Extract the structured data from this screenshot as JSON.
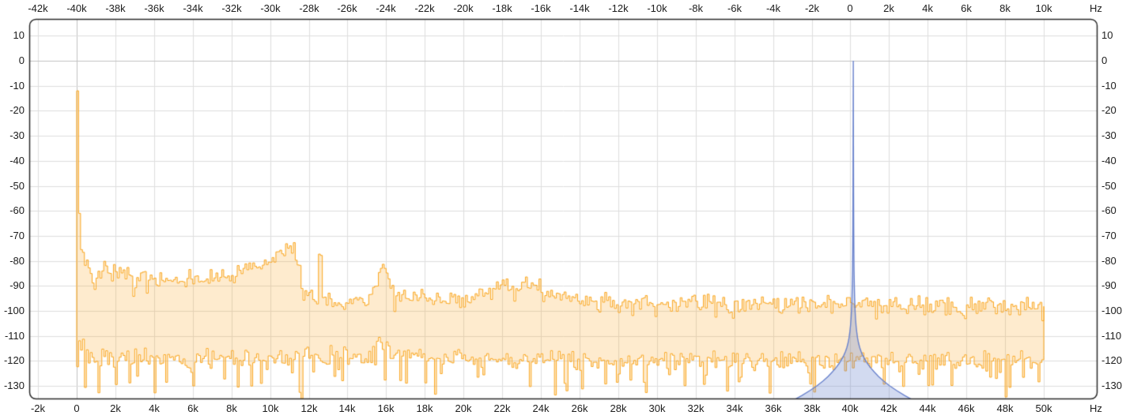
{
  "window": {
    "background": "#ffffff",
    "description": "FFT frequency spectrum plot with max/min hold traces and reference tone peak"
  },
  "chart_data": {
    "type": "line",
    "title": "",
    "grid": {
      "color": "#dedede",
      "zero_line_color": "#c2c2c2",
      "border_color": "#2a2a2a",
      "grid_on": true
    },
    "x_range_hz": [
      -2431,
      52757
    ],
    "y_range_db": [
      -135.2,
      16.6
    ],
    "x_axis_top": {
      "unit_label": "Hz",
      "offset_hz": 40000,
      "tick_values_hz": [
        -42000,
        -40000,
        -38000,
        -36000,
        -34000,
        -32000,
        -30000,
        -28000,
        -26000,
        -24000,
        -22000,
        -20000,
        -18000,
        -16000,
        -14000,
        -12000,
        -10000,
        -8000,
        -6000,
        -4000,
        -2000,
        0,
        2000,
        4000,
        6000,
        8000,
        10000
      ],
      "labels": [
        "-42k",
        "-40k",
        "-38k",
        "-36k",
        "-34k",
        "-32k",
        "-30k",
        "-28k",
        "-26k",
        "-24k",
        "-22k",
        "-20k",
        "-18k",
        "-16k",
        "-14k",
        "-12k",
        "-10k",
        "-8k",
        "-6k",
        "-4k",
        "-2k",
        "0",
        "2k",
        "4k",
        "6k",
        "8k",
        "10k"
      ]
    },
    "x_axis_bottom": {
      "unit_label": "Hz",
      "offset_hz": 0,
      "tick_values_hz": [
        -2000,
        0,
        2000,
        4000,
        6000,
        8000,
        10000,
        12000,
        14000,
        16000,
        18000,
        20000,
        22000,
        24000,
        26000,
        28000,
        30000,
        32000,
        34000,
        36000,
        38000,
        40000,
        42000,
        44000,
        46000,
        48000,
        50000
      ],
      "labels": [
        "-2k",
        "0",
        "2k",
        "4k",
        "6k",
        "8k",
        "10k",
        "12k",
        "14k",
        "16k",
        "18k",
        "20k",
        "22k",
        "24k",
        "26k",
        "28k",
        "30k",
        "32k",
        "34k",
        "36k",
        "38k",
        "40k",
        "42k",
        "44k",
        "46k",
        "48k",
        "50k"
      ]
    },
    "y_axis_left": {
      "tick_values_db": [
        10,
        0,
        -10,
        -20,
        -30,
        -40,
        -50,
        -60,
        -70,
        -80,
        -90,
        -100,
        -110,
        -120,
        -130
      ],
      "labels": [
        "10",
        "0",
        "-10",
        "-20",
        "-30",
        "-40",
        "-50",
        "-60",
        "-70",
        "-80",
        "-90",
        "-100",
        "-110",
        "-120",
        "-130"
      ]
    },
    "y_axis_right": {
      "tick_values_db": [
        10,
        0,
        -10,
        -20,
        -30,
        -40,
        -50,
        -60,
        -70,
        -80,
        -90,
        -100,
        -110,
        -120,
        -130
      ],
      "labels": [
        "10",
        "0",
        "-10",
        "-20",
        "-30",
        "-40",
        "-50",
        "-60",
        "-70",
        "-80",
        "-90",
        "-100",
        "-110",
        "-120",
        "-130"
      ]
    },
    "series": [
      {
        "name": "spectrum-max-trace",
        "style": "step",
        "color": "#faa61e",
        "fill_to": "spectrum-min-trace",
        "fill_color": "rgba(250,166,30,0.22)",
        "start_hz": 0,
        "end_hz": 50000,
        "bin_hz": 100,
        "noise_db": 4.5,
        "dip_chance": 0.07,
        "dip_db": 6,
        "seed": 20240517,
        "pin_first": true,
        "envelope_db": [
          [
            0,
            -12
          ],
          [
            80,
            -58
          ],
          [
            150,
            -74
          ],
          [
            300,
            -79
          ],
          [
            500,
            -81
          ],
          [
            650,
            -86
          ],
          [
            800,
            -92
          ],
          [
            950,
            -90
          ],
          [
            1150,
            -84
          ],
          [
            1400,
            -80.5
          ],
          [
            1650,
            -86
          ],
          [
            1900,
            -83.5
          ],
          [
            2150,
            -82.5
          ],
          [
            2450,
            -87
          ],
          [
            2800,
            -86
          ],
          [
            3200,
            -87.5
          ],
          [
            3600,
            -86
          ],
          [
            4000,
            -87.5
          ],
          [
            4500,
            -86.5
          ],
          [
            5000,
            -87.5
          ],
          [
            5500,
            -86.5
          ],
          [
            6000,
            -87
          ],
          [
            6500,
            -86.5
          ],
          [
            7000,
            -87
          ],
          [
            7500,
            -86
          ],
          [
            8000,
            -85.5
          ],
          [
            8600,
            -84.5
          ],
          [
            9200,
            -83
          ],
          [
            9800,
            -81
          ],
          [
            10300,
            -79
          ],
          [
            10700,
            -77
          ],
          [
            11000,
            -75
          ],
          [
            11150,
            -74.5
          ],
          [
            11350,
            -77
          ],
          [
            11500,
            -83
          ],
          [
            11700,
            -91
          ],
          [
            12000,
            -94.5
          ],
          [
            12440,
            -95.5
          ],
          [
            12520,
            -72
          ],
          [
            12570,
            -72
          ],
          [
            12700,
            -95.5
          ],
          [
            13200,
            -96
          ],
          [
            14000,
            -95.5
          ],
          [
            14800,
            -94.5
          ],
          [
            15300,
            -93
          ],
          [
            15600,
            -87
          ],
          [
            15850,
            -81.5
          ],
          [
            16100,
            -88
          ],
          [
            16400,
            -93.5
          ],
          [
            17000,
            -95
          ],
          [
            18000,
            -95.5
          ],
          [
            19000,
            -95
          ],
          [
            20000,
            -94.5
          ],
          [
            20800,
            -93.5
          ],
          [
            21500,
            -92
          ],
          [
            22100,
            -90.5
          ],
          [
            22600,
            -91.5
          ],
          [
            23100,
            -89.5
          ],
          [
            23600,
            -89
          ],
          [
            24100,
            -92.5
          ],
          [
            25000,
            -94.5
          ],
          [
            26000,
            -95.5
          ],
          [
            27000,
            -96.5
          ],
          [
            28500,
            -97
          ],
          [
            32000,
            -97.2
          ],
          [
            36000,
            -97.4
          ],
          [
            40000,
            -97.5
          ],
          [
            44000,
            -97.8
          ],
          [
            48000,
            -98
          ],
          [
            50000,
            -98
          ]
        ]
      },
      {
        "name": "spectrum-min-trace",
        "style": "step",
        "color": "#faa61e",
        "start_hz": 0,
        "end_hz": 50000,
        "bin_hz": 100,
        "noise_db": 5,
        "dip_chance": 0.22,
        "dip_db": 14,
        "seed": 987654321,
        "pin_first": false,
        "envelope_db": [
          [
            0,
            -110
          ],
          [
            200,
            -114
          ],
          [
            500,
            -116.5
          ],
          [
            1000,
            -118
          ],
          [
            3000,
            -118.5
          ],
          [
            8000,
            -119
          ],
          [
            15300,
            -118
          ],
          [
            15600,
            -114
          ],
          [
            15850,
            -110.5
          ],
          [
            16150,
            -115
          ],
          [
            16500,
            -118
          ],
          [
            20000,
            -119
          ],
          [
            30000,
            -119.5
          ],
          [
            50000,
            -119.5
          ]
        ]
      },
      {
        "name": "reference-tone-peak",
        "style": "peak",
        "color": "#6a83cd",
        "fill_color": "rgba(106,131,205,0.30)",
        "center_hz": 40150,
        "peak_db": 0,
        "skirt_db": [
          [
            0,
            0
          ],
          [
            8,
            -30
          ],
          [
            15,
            -52
          ],
          [
            22,
            -66
          ],
          [
            30,
            -76
          ],
          [
            40,
            -84
          ],
          [
            55,
            -90
          ],
          [
            70,
            -95
          ],
          [
            90,
            -99.5
          ],
          [
            115,
            -103
          ],
          [
            145,
            -106
          ],
          [
            180,
            -108.5
          ],
          [
            220,
            -110.8
          ],
          [
            270,
            -112.8
          ],
          [
            330,
            -114.6
          ],
          [
            400,
            -116.2
          ],
          [
            490,
            -117.8
          ],
          [
            600,
            -119.4
          ],
          [
            730,
            -121
          ],
          [
            890,
            -122.7
          ],
          [
            1080,
            -124.4
          ],
          [
            1300,
            -126.2
          ],
          [
            1560,
            -128
          ],
          [
            1870,
            -129.9
          ],
          [
            2230,
            -131.8
          ],
          [
            2650,
            -133.8
          ],
          [
            3000,
            -135.3
          ],
          [
            3300,
            -136.5
          ]
        ]
      }
    ]
  }
}
